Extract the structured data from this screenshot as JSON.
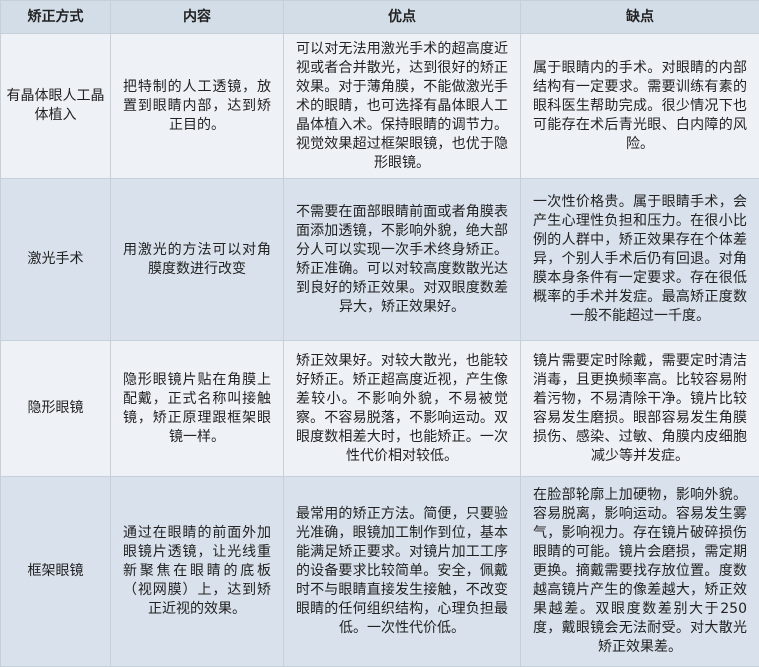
{
  "table": {
    "headers": [
      "矫正方式",
      "内容",
      "优点",
      "缺点"
    ],
    "rows": [
      [
        "有晶体眼人工晶体植入",
        "把特制的人工透镜，放置到眼睛内部，达到矫正目的。",
        "可以对无法用激光手术的超高度近视或者合并散光，达到很好的矫正效果。对于薄角膜，不能做激光手术的眼睛，也可选择有晶体眼人工晶体植入术。保持眼睛的调节力。视觉效果超过框架眼镜，也优于隐形眼镜。",
        "属于眼睛内的手术。对眼睛的内部结构有一定要求。需要训练有素的眼科医生帮助完成。很少情况下也可能存在术后青光眼、白内障的风险。"
      ],
      [
        "激光手术",
        "用激光的方法可以对角膜度数进行改变",
        "不需要在面部眼睛前面或者角膜表面添加透镜，不影响外貌，绝大部分人可以实现一次手术终身矫正。矫正准确。可以对较高度数散光达到良好的矫正效果。对双眼度数差异大，矫正效果好。",
        "一次性价格贵。属于眼睛手术，会产生心理性负担和压力。在很小比例的人群中，矫正效果存在个体差异，个别人手术后仍有回退。对角膜本身条件有一定要求。存在很低概率的手术并发症。最高矫正度数一般不能超过一千度。"
      ],
      [
        "隐形眼镜",
        "隐形眼镜片贴在角膜上配戴，正式名称叫接触镜，矫正原理跟框架眼镜一样。",
        "矫正效果好。对较大散光，也能较好矫正。矫正超高度近视，产生像差较小。不影响外貌，不易被觉察。不容易脱落，不影响运动。双眼度数相差大时，也能矫正。一次性代价相对较低。",
        "镜片需要定时除戴，需要定时清洁消毒，且更换频率高。比较容易附着污物，不易清除干净。镜片比较容易发生磨损。眼部容易发生角膜损伤、感染、过敏、角膜内皮细胞减少等并发症。"
      ],
      [
        "框架眼镜",
        "通过在眼睛的前面外加眼镜片透镜，让光线重新聚焦在眼睛的底板（视网膜）上，达到矫正近视的效果。",
        "最常用的矫正方法。简便，只要验光准确，眼镜加工制作到位，基本能满足矫正要求。对镜片加工工序的设备要求比较简单。安全，佩戴时不与眼睛直接发生接触，不改变眼睛的任何组织结构，心理负担最低。一次性代价低。",
        "在脸部轮廓上加硬物，影响外貌。容易脱离，影响运动。容易发生雾气，影响视力。存在镜片破碎损伤眼睛的可能。镜片会磨损，需定期更换。摘戴需要找存放位置。度数越高镜片产生的像差越大，矫正效果越差。双眼度数差别大于250度，戴眼镜会无法耐受。对大散光矫正效果差。"
      ]
    ]
  }
}
